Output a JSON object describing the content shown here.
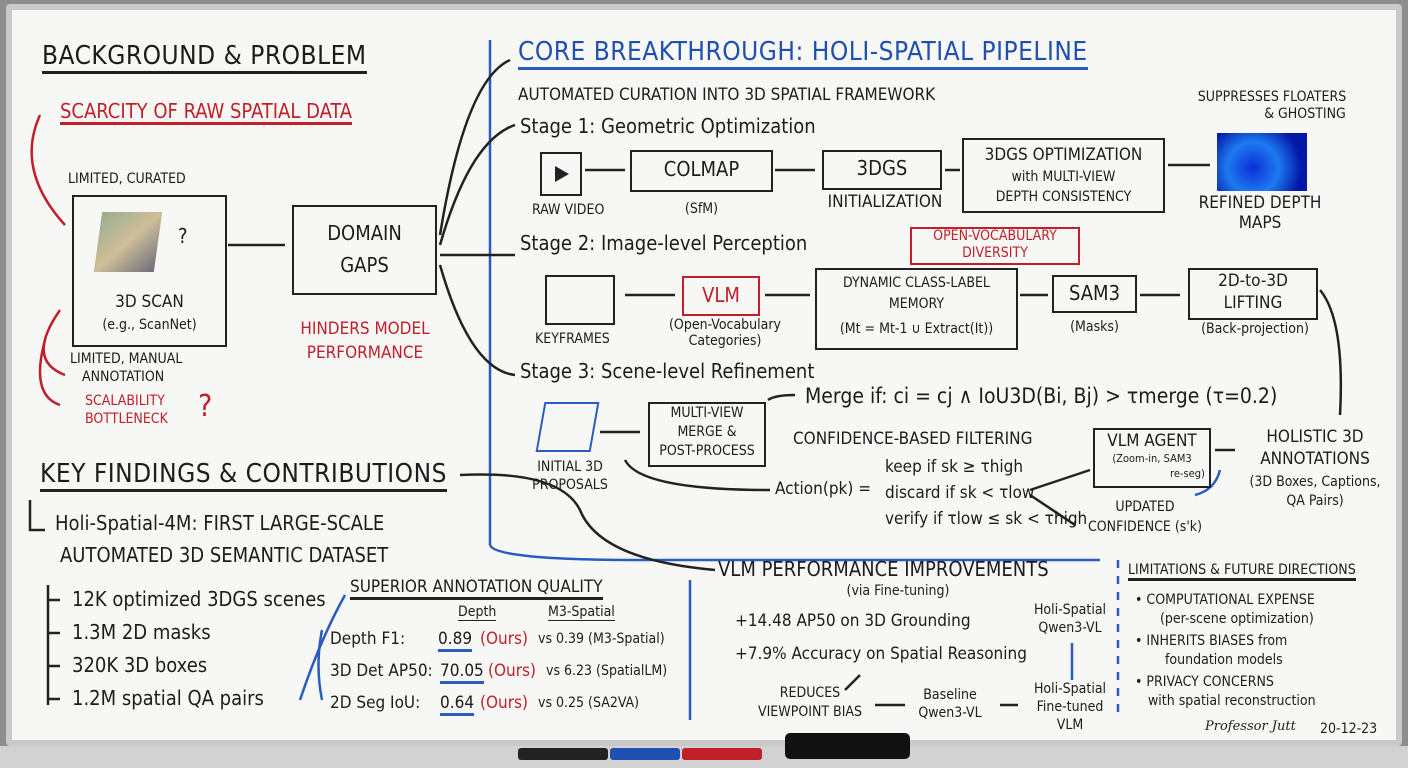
{
  "background": {
    "title": "BACKGROUND & PROBLEM",
    "subtitle": "SCARCITY OF RAW SPATIAL DATA",
    "limited_curated": "LIMITED, CURATED",
    "scan_label": "3D SCAN",
    "scan_example": "(e.g., ScanNet)",
    "manual": "LIMITED, MANUAL",
    "annotation": "ANNOTATION",
    "bottleneck1": "SCALABILITY",
    "bottleneck2": "BOTTLENECK",
    "qmark": "?",
    "domain1": "DOMAIN",
    "domain2": "GAPS",
    "hinders1": "HINDERS MODEL",
    "hinders2": "PERFORMANCE"
  },
  "core": {
    "title": "CORE BREAKTHROUGH: HOLI-SPATIAL PIPELINE",
    "subtitle": "AUTOMATED CURATION INTO 3D SPATIAL FRAMEWORK",
    "stage1": {
      "label": "Stage 1: Geometric Optimization",
      "raw_video": "RAW VIDEO",
      "colmap": "COLMAP",
      "sfm": "(SfM)",
      "init_box": "3DGS",
      "init": "INITIALIZATION",
      "opt1": "3DGS OPTIMIZATION",
      "opt2": "with MULTI-VIEW",
      "opt3": "DEPTH CONSISTENCY",
      "refined1": "REFINED DEPTH",
      "refined2": "MAPS",
      "suppress1": "SUPPRESSES FLOATERS",
      "suppress2": "& GHOSTING"
    },
    "stage2": {
      "label": "Stage 2: Image-level Perception",
      "keyframes": "KEYFRAMES",
      "vlm": "VLM",
      "vlm_sub1": "(Open-Vocabulary",
      "vlm_sub2": "Categories)",
      "ov1": "OPEN-VOCABULARY",
      "ov2": "DIVERSITY",
      "mem1": "DYNAMIC CLASS-LABEL",
      "mem2": "MEMORY",
      "mem_formula": "(Mt = Mt-1 ∪ Extract(It))",
      "sam3": "SAM3",
      "masks": "(Masks)",
      "lift1": "2D-to-3D",
      "lift2": "LIFTING",
      "backproj": "(Back-projection)"
    },
    "stage3": {
      "label": "Stage 3: Scene-level Refinement",
      "initial1": "INITIAL 3D",
      "initial2": "PROPOSALS",
      "merge1": "MULTI-VIEW",
      "merge2": "MERGE &",
      "merge3": "POST-PROCESS",
      "merge_if": "Merge if: ci = cj ∧ IoU3D(Bi, Bj) > τmerge (τ=0.2)",
      "conf": "CONFIDENCE-BASED FILTERING",
      "action": "Action(pk) =",
      "keep": "keep if sk ≥ τhigh",
      "discard": "discard if sk < τlow",
      "verify": "verify if τlow ≤ sk < τhigh",
      "agent1": "VLM AGENT",
      "agent2": "(Zoom-in, SAM3",
      "agent3": "re-seg)",
      "updated1": "UPDATED",
      "updated2": "CONFIDENCE (s'k)",
      "holistic1": "HOLISTIC 3D",
      "holistic2": "ANNOTATIONS",
      "holistic3": "(3D Boxes, Captions,",
      "holistic4": "QA Pairs)"
    }
  },
  "findings": {
    "title": "KEY FINDINGS & CONTRIBUTIONS",
    "dataset1": "Holi-Spatial-4M: FIRST LARGE-SCALE",
    "dataset2": "AUTOMATED 3D SEMANTIC DATASET",
    "stats": [
      "12K optimized 3DGS scenes",
      "1.3M 2D masks",
      "320K 3D boxes",
      "1.2M spatial QA pairs"
    ],
    "quality": {
      "title": "SUPERIOR ANNOTATION QUALITY",
      "col1": "Depth",
      "col2": "M3-Spatial",
      "rows": [
        {
          "metric": "Depth F1:",
          "ours": "0.89",
          "ours_tag": "(Ours)",
          "vs": "vs 0.39 (M3-Spatial)"
        },
        {
          "metric": "3D Det AP50:",
          "ours": "70.05",
          "ours_tag": "(Ours)",
          "vs": "vs 6.23 (SpatialLM)"
        },
        {
          "metric": "2D Seg IoU:",
          "ours": "0.64",
          "ours_tag": "(Ours)",
          "vs": "vs 0.25 (SA2VA)"
        }
      ]
    }
  },
  "vlm": {
    "title": "VLM PERFORMANCE IMPROVEMENTS",
    "sub": "(via Fine-tuning)",
    "g1": "+14.48 AP50 on 3D Grounding",
    "g2": "+7.9% Accuracy on Spatial Reasoning",
    "hs1": "Holi-Spatial",
    "hs2": "Qwen3-VL",
    "reduces1": "REDUCES",
    "reduces2": "VIEWPOINT BIAS",
    "base1": "Baseline",
    "base2": "Qwen3-VL",
    "ft1": "Holi-Spatial",
    "ft2": "Fine-tuned",
    "ft3": "VLM"
  },
  "limits": {
    "title": "LIMITATIONS & FUTURE DIRECTIONS",
    "items": [
      {
        "main": "• COMPUTATIONAL EXPENSE",
        "sub": "(per-scene optimization)"
      },
      {
        "main": "• INHERITS BIASES from",
        "sub": "foundation models"
      },
      {
        "main": "• PRIVACY CONCERNS",
        "sub": "with spatial reconstruction"
      }
    ],
    "signature": "Professor Jutt",
    "date": "20-12-23"
  },
  "colors": {
    "ink": "#1c1c1c",
    "red": "#c0202a",
    "blue": "#1f4fb0",
    "board": "#f7f7f5"
  }
}
